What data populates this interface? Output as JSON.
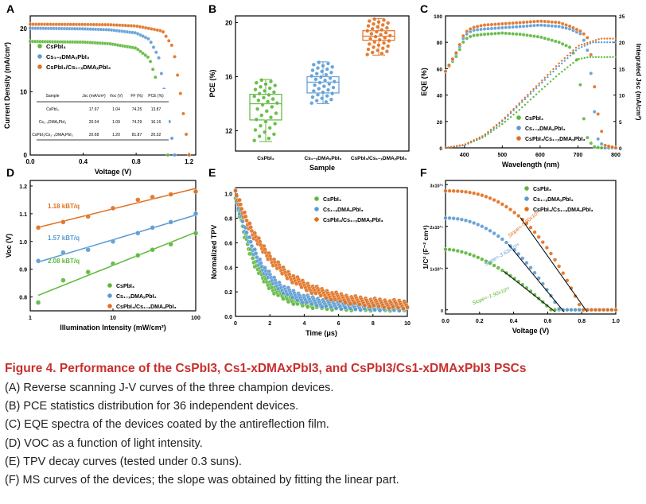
{
  "caption": {
    "title": "Figure 4. Performance of the CsPbI3, Cs1-xDMAxPbI3, and CsPbI3/Cs1-xDMAxPbI3 PSCs",
    "lines": [
      "(A) Reverse scanning J-V curves of the three champion devices.",
      "(B) PCE statistics distribution for 36 independent devices.",
      "(C) EQE spectra of the devices coated by the antireflection film.",
      "(D) VOC as a function of light intensity.",
      "(E) TPV decay curves (tested under 0.3 suns).",
      "(F) MS curves of the devices; the slope was obtained by fitting the linear part."
    ]
  },
  "colors": {
    "green": "#5cb83a",
    "blue": "#5b9bd5",
    "orange": "#e07020"
  },
  "series_names": [
    "CsPbI₃",
    "Cs₁₋ₓDMAₓPbI₃",
    "CsPbI₃/Cs₁₋ₓDMAₓPbI₃"
  ],
  "chart_data": [
    {
      "panel": "A",
      "type": "line",
      "xlabel": "Voltage (V)",
      "ylabel": "Current Density (mA/cm²)",
      "xlim": [
        0,
        1.25
      ],
      "ylim": [
        0,
        22
      ],
      "xticks": [
        "0.0",
        "0.4",
        "0.8",
        "1.2"
      ],
      "yticks": [
        "0",
        "10",
        "20"
      ],
      "series": [
        {
          "name": "CsPbI₃",
          "x": [
            0,
            0.2,
            0.4,
            0.6,
            0.8,
            0.9,
            0.95,
            1.0,
            1.04
          ],
          "y": [
            17.97,
            17.9,
            17.85,
            17.6,
            16.9,
            15.3,
            12.0,
            5.0,
            0
          ]
        },
        {
          "name": "Cs₁₋ₓDMAₓPbI₃",
          "x": [
            0,
            0.2,
            0.4,
            0.6,
            0.8,
            0.9,
            0.97,
            1.03,
            1.09
          ],
          "y": [
            20.04,
            20.0,
            19.95,
            19.8,
            19.3,
            18.3,
            15.5,
            8.0,
            0
          ]
        },
        {
          "name": "CsPbI₃/Cs₁₋ₓDMAₓPbI₃",
          "x": [
            0,
            0.2,
            0.4,
            0.6,
            0.8,
            1.0,
            1.08,
            1.14,
            1.2
          ],
          "y": [
            20.68,
            20.66,
            20.64,
            20.6,
            20.4,
            19.6,
            17.0,
            9.0,
            0
          ]
        }
      ],
      "table": {
        "headers": [
          "Sample",
          "Jsc (mA/cm²)",
          "Voc (V)",
          "FF (%)",
          "PCE (%)"
        ],
        "rows": [
          [
            "CsPbI₃",
            "17.97",
            "1.04",
            "74.25",
            "13.87"
          ],
          [
            "Cs₁₋ₓDMAₓPbI₃",
            "20.04",
            "1.09",
            "74.29",
            "16.16"
          ],
          [
            "CsPbI₃/Cs₁₋ₓDMAₓPbI₃",
            "20.68",
            "1.20",
            "81.87",
            "20.32"
          ]
        ]
      }
    },
    {
      "panel": "B",
      "type": "box",
      "xlabel": "Sample",
      "ylabel": "PCE (%)",
      "ylim": [
        10.5,
        20.5
      ],
      "yticks": [
        "12",
        "16",
        "20"
      ],
      "categories": [
        "CsPbI₃",
        "Cs₁₋ₓDMAₓPbI₃",
        "CsPbI₃/Cs₁₋ₓDMAₓPbI₃"
      ],
      "boxes": [
        {
          "min": 11.2,
          "q1": 12.8,
          "median": 14.0,
          "q3": 14.7,
          "max": 15.8
        },
        {
          "min": 14.0,
          "q1": 14.8,
          "median": 15.6,
          "q3": 16.0,
          "max": 17.1
        },
        {
          "min": 17.6,
          "q1": 18.7,
          "median": 19.0,
          "q3": 19.4,
          "max": 20.3
        }
      ],
      "n_points_each": 36
    },
    {
      "panel": "C",
      "type": "line",
      "xlabel": "Wavelength (nm)",
      "ylabel": "EQE (%)",
      "y2label": "Integrated Jsc (mA/cm²)",
      "xlim": [
        350,
        800
      ],
      "ylim": [
        0,
        100
      ],
      "y2lim": [
        0,
        25
      ],
      "xticks": [
        "400",
        "500",
        "600",
        "700",
        "800"
      ],
      "yticks": [
        "0",
        "20",
        "40",
        "60",
        "80",
        "100"
      ],
      "y2ticks": [
        "0",
        "5",
        "10",
        "15",
        "20",
        "25"
      ],
      "series_eqe": [
        {
          "name": "CsPbI₃",
          "x": [
            350,
            380,
            400,
            420,
            450,
            500,
            550,
            600,
            650,
            680,
            700,
            720,
            740,
            760,
            800
          ],
          "y": [
            58,
            70,
            82,
            85,
            86,
            87,
            86,
            84,
            80,
            76,
            65,
            10,
            1,
            0,
            0
          ]
        },
        {
          "name": "Cs₁₋ₓDMAₓPbI₃",
          "x": [
            350,
            380,
            400,
            420,
            450,
            500,
            550,
            600,
            650,
            680,
            710,
            730,
            750,
            770,
            800
          ],
          "y": [
            58,
            72,
            85,
            89,
            90,
            91,
            92,
            93,
            92,
            90,
            86,
            70,
            8,
            0,
            0
          ]
        },
        {
          "name": "CsPbI₃/Cs₁₋ₓDMAₓPbI₃",
          "x": [
            350,
            380,
            400,
            420,
            450,
            500,
            550,
            600,
            650,
            680,
            710,
            730,
            750,
            770,
            800
          ],
          "y": [
            58,
            73,
            87,
            91,
            93,
            94,
            95,
            96,
            95,
            92,
            88,
            82,
            30,
            2,
            0
          ]
        }
      ],
      "series_jsc": [
        {
          "name": "CsPbI₃",
          "x": [
            350,
            400,
            450,
            500,
            550,
            600,
            650,
            700,
            730,
            800
          ],
          "y": [
            0,
            0.5,
            2.0,
            4.5,
            7.5,
            10.8,
            14.0,
            16.8,
            17.2,
            17.2
          ]
        },
        {
          "name": "Cs₁₋ₓDMAₓPbI₃",
          "x": [
            350,
            400,
            450,
            500,
            550,
            600,
            650,
            700,
            740,
            800
          ],
          "y": [
            0,
            0.5,
            2.2,
            5.0,
            8.5,
            12.0,
            15.5,
            18.8,
            20.0,
            20.0
          ]
        },
        {
          "name": "CsPbI₃/Cs₁₋ₓDMAₓPbI₃",
          "x": [
            350,
            400,
            450,
            500,
            550,
            600,
            650,
            700,
            760,
            800
          ],
          "y": [
            0,
            0.6,
            2.3,
            5.2,
            8.8,
            12.4,
            16.0,
            19.3,
            20.7,
            20.7
          ]
        }
      ]
    },
    {
      "panel": "D",
      "type": "scatter",
      "xlabel": "Illumination Intensity (mW/cm²)",
      "ylabel": "Voc (V)",
      "xscale": "log",
      "xlim": [
        1,
        100
      ],
      "ylim": [
        0.75,
        1.22
      ],
      "xticks": [
        "1",
        "10",
        "100"
      ],
      "yticks": [
        "0.8",
        "0.9",
        "1.0",
        "1.1",
        "1.2"
      ],
      "x": [
        1.25,
        2.5,
        5,
        10,
        20,
        30,
        50,
        100
      ],
      "series": [
        {
          "name": "CsPbI₃",
          "y": [
            0.78,
            0.86,
            0.89,
            0.92,
            0.95,
            0.97,
            0.99,
            1.03
          ],
          "fit": "2.08 kBT/q"
        },
        {
          "name": "Cs₁₋ₓDMAₓPbI₃",
          "y": [
            0.93,
            0.96,
            0.97,
            1.0,
            1.03,
            1.05,
            1.07,
            1.1
          ],
          "fit": "1.57 kBT/q"
        },
        {
          "name": "CsPbI₃/Cs₁₋ₓDMAₓPbI₃",
          "y": [
            1.05,
            1.07,
            1.09,
            1.12,
            1.15,
            1.16,
            1.17,
            1.18
          ],
          "fit": "1.18 kBT/q"
        }
      ]
    },
    {
      "panel": "E",
      "type": "scatter",
      "xlabel": "Time (μs)",
      "ylabel": "Normalized TPV",
      "xlim": [
        0,
        10
      ],
      "ylim": [
        0,
        1.05
      ],
      "xticks": [
        "0",
        "2",
        "4",
        "6",
        "8",
        "10"
      ],
      "yticks": [
        "0.0",
        "0.2",
        "0.4",
        "0.6",
        "0.8",
        "1.0"
      ],
      "series": [
        {
          "name": "CsPbI₃",
          "tau": 1.2
        },
        {
          "name": "Cs₁₋ₓDMAₓPbI₃",
          "tau": 1.5
        },
        {
          "name": "CsPbI₃/Cs₁₋ₓDMAₓPbI₃",
          "tau": 2.4
        }
      ]
    },
    {
      "panel": "F",
      "type": "scatter",
      "xlabel": "Voltage (V)",
      "ylabel": "1/C² (F⁻² cm⁴)",
      "xlim": [
        0,
        1.0
      ],
      "ylim": [
        -100000000000000.0,
        3100000000000000.0
      ],
      "xticks": [
        "0.0",
        "0.2",
        "0.4",
        "0.6",
        "0.8",
        "1.0"
      ],
      "yticks": [
        "0",
        "1x10¹⁵",
        "2x10¹⁵",
        "3x10¹⁵"
      ],
      "series": [
        {
          "name": "CsPbI₃",
          "y0": 1450000000000000.0,
          "vfb": 0.62,
          "slope": "Slope=-1.90x10¹⁵"
        },
        {
          "name": "Cs₁₋ₓDMAₓPbI₃",
          "y0": 2200000000000000.0,
          "vfb": 0.67,
          "slope": "Slope=-3.63x10¹⁵"
        },
        {
          "name": "CsPbI₃/Cs₁₋ₓDMAₓPbI₃",
          "y0": 2850000000000000.0,
          "vfb": 0.8,
          "slope": "Slope=-5.90x10¹⁵"
        }
      ]
    }
  ]
}
